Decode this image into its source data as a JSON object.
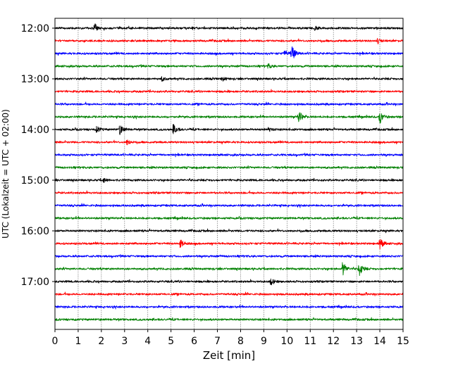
{
  "chart_data": {
    "type": "line",
    "title": "",
    "xlabel": "Zeit  [min]",
    "ylabel": "UTC (Lokalzeit = UTC + 02:00)",
    "xlim": [
      0,
      15
    ],
    "x_ticks": [
      "0",
      "1",
      "2",
      "3",
      "4",
      "5",
      "6",
      "7",
      "8",
      "9",
      "10",
      "11",
      "12",
      "13",
      "14",
      "15"
    ],
    "y_tick_labels": [
      "12:00",
      "13:00",
      "14:00",
      "15:00",
      "16:00",
      "17:00"
    ],
    "row_interval_minutes": 15,
    "start_time": "12:00",
    "grid_x": true,
    "colors": [
      "#000000",
      "#ff0000",
      "#0000ff",
      "#008000"
    ],
    "series": [
      {
        "time": "12:00",
        "color": "#000000",
        "events": [
          {
            "x": 1.7,
            "amp": 0.45
          },
          {
            "x": 11.2,
            "amp": 0.2
          }
        ]
      },
      {
        "time": "12:15",
        "color": "#ff0000",
        "events": [
          {
            "x": 13.9,
            "amp": 0.25
          }
        ]
      },
      {
        "time": "12:30",
        "color": "#0000ff",
        "events": [
          {
            "x": 10.2,
            "amp": 0.9
          },
          {
            "x": 9.9,
            "amp": 0.35
          }
        ]
      },
      {
        "time": "12:45",
        "color": "#008000",
        "events": [
          {
            "x": 9.2,
            "amp": 0.25
          }
        ]
      },
      {
        "time": "13:00",
        "color": "#000000",
        "events": [
          {
            "x": 4.6,
            "amp": 0.2
          },
          {
            "x": 7.2,
            "amp": 0.2
          }
        ]
      },
      {
        "time": "13:15",
        "color": "#ff0000",
        "events": []
      },
      {
        "time": "13:30",
        "color": "#0000ff",
        "events": []
      },
      {
        "time": "13:45",
        "color": "#008000",
        "events": [
          {
            "x": 10.5,
            "amp": 0.7
          },
          {
            "x": 14.0,
            "amp": 0.7
          }
        ]
      },
      {
        "time": "14:00",
        "color": "#000000",
        "events": [
          {
            "x": 1.8,
            "amp": 0.35
          },
          {
            "x": 2.8,
            "amp": 0.55
          },
          {
            "x": 5.1,
            "amp": 0.55
          },
          {
            "x": 9.2,
            "amp": 0.2
          }
        ]
      },
      {
        "time": "14:15",
        "color": "#ff0000",
        "events": [
          {
            "x": 3.1,
            "amp": 0.3
          }
        ]
      },
      {
        "time": "14:30",
        "color": "#0000ff",
        "events": []
      },
      {
        "time": "14:45",
        "color": "#008000",
        "events": []
      },
      {
        "time": "15:00",
        "color": "#000000",
        "events": [
          {
            "x": 2.1,
            "amp": 0.2
          }
        ]
      },
      {
        "time": "15:15",
        "color": "#ff0000",
        "events": []
      },
      {
        "time": "15:30",
        "color": "#0000ff",
        "events": []
      },
      {
        "time": "15:45",
        "color": "#008000",
        "events": []
      },
      {
        "time": "16:00",
        "color": "#000000",
        "events": []
      },
      {
        "time": "16:15",
        "color": "#ff0000",
        "events": [
          {
            "x": 5.4,
            "amp": 0.45
          },
          {
            "x": 14.0,
            "amp": 0.6
          }
        ]
      },
      {
        "time": "16:30",
        "color": "#0000ff",
        "events": []
      },
      {
        "time": "16:45",
        "color": "#008000",
        "events": [
          {
            "x": 12.4,
            "amp": 0.8
          },
          {
            "x": 13.1,
            "amp": 0.8
          }
        ]
      },
      {
        "time": "17:00",
        "color": "#000000",
        "events": [
          {
            "x": 9.3,
            "amp": 0.4
          }
        ]
      },
      {
        "time": "17:15",
        "color": "#ff0000",
        "events": []
      },
      {
        "time": "17:30",
        "color": "#0000ff",
        "events": []
      },
      {
        "time": "17:45",
        "color": "#008000",
        "events": []
      }
    ]
  }
}
